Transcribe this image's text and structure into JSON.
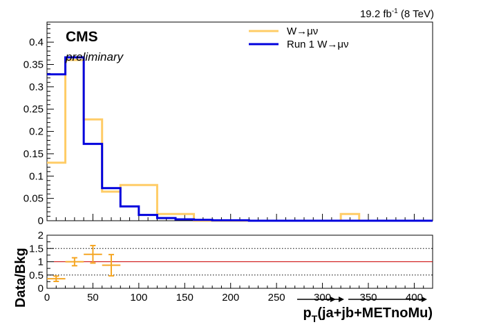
{
  "chart_data": {
    "type": "line",
    "lumi_text": "19.2 fb",
    "lumi_sup": "-1",
    "lumi_energy": " (8 TeV)",
    "cms_label": "CMS",
    "cms_sub": "preliminary",
    "bin_edges": [
      0,
      20,
      40,
      60,
      80,
      100,
      120,
      140,
      160,
      180,
      200,
      220,
      240,
      260,
      280,
      300,
      320,
      340,
      360,
      380,
      400,
      420
    ],
    "series": [
      {
        "name": "W→μν",
        "color": "#ffcc66",
        "values": [
          0.13,
          0.36,
          0.227,
          0.065,
          0.08,
          0.08,
          0.015,
          0.015,
          0,
          0,
          0,
          0,
          0,
          0,
          0,
          0,
          0.015,
          0,
          0,
          0,
          0
        ]
      },
      {
        "name": "Run 1 W→μν",
        "color": "#0000dd",
        "values": [
          0.328,
          0.366,
          0.172,
          0.073,
          0.032,
          0.013,
          0.006,
          0.003,
          0.002,
          0.001,
          0.001,
          0,
          0,
          0,
          0,
          0,
          0,
          0,
          0,
          0,
          0
        ]
      }
    ],
    "upper_ylim": [
      0,
      0.445
    ],
    "upper_yticks": [
      "0",
      "0.05",
      "0.1",
      "0.15",
      "0.2",
      "0.25",
      "0.3",
      "0.35",
      "0.4"
    ],
    "xlim": [
      0,
      420
    ],
    "xticks": [
      "0",
      "50",
      "100",
      "150",
      "200",
      "250",
      "300",
      "350",
      "400"
    ],
    "ratio": {
      "ylabel": "Data/Bkg",
      "ylim": [
        0,
        2
      ],
      "yticks": [
        "0",
        "0.5",
        "1",
        "1.5",
        "2"
      ],
      "reference": 1,
      "dotted_lines": [
        0.5,
        1.5
      ],
      "reference_color": "#cc0000",
      "marker_color": "#f5a623",
      "points": [
        {
          "x": 10,
          "y": 0.36,
          "xerr": 10,
          "yerr": 0.1
        },
        {
          "x": 30,
          "y": 1.0,
          "xerr": 10,
          "yerr": 0.15
        },
        {
          "x": 50,
          "y": 1.28,
          "xerr": 10,
          "yerr": 0.33
        },
        {
          "x": 70,
          "y": 0.87,
          "xerr": 10,
          "yerr": 0.4
        }
      ]
    },
    "xlabel_main": "p",
    "xlabel_sub": "T",
    "xlabel_rest": "(ja+jb+METnoMu)"
  }
}
